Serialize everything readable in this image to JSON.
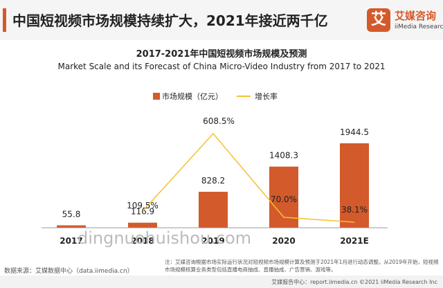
{
  "headline": "中国短视频市场规模持续扩大，2021年接近两千亿",
  "logo": {
    "mark": "艾",
    "name_cn": "艾媒咨询",
    "name_en": "iiMedia Research"
  },
  "colors": {
    "bar": "#d35a2b",
    "line": "#f3c230",
    "accent": "#d35a2b"
  },
  "chart_data": {
    "type": "bar",
    "title": "2017-2021年中国短视频市场规模及预测",
    "subtitle": "Market Scale and its Forecast of China Micro-Video Industry from 2017 to 2021",
    "categories": [
      "2017",
      "2018",
      "2019",
      "2020",
      "2021E"
    ],
    "series": [
      {
        "name": "市场规模（亿元）",
        "type": "bar",
        "values": [
          55.8,
          116.9,
          828.2,
          1408.3,
          1944.5
        ],
        "labels": [
          "55.8",
          "116.9",
          "828.2",
          "1408.3",
          "1944.5"
        ]
      },
      {
        "name": "增长率",
        "type": "line",
        "values": [
          null,
          109.5,
          608.5,
          70.0,
          38.1
        ],
        "labels": [
          "",
          "109.5%",
          "608.5%",
          "70.0%",
          "38.1%"
        ]
      }
    ],
    "legend_position": "top-center",
    "grid": false
  },
  "source": "数据来源：艾媒数据中心（data.iimedia.cn）",
  "note": "注：艾媒咨询根据市场实际运行状况对短视频市场规模计算及预测于2021年1月进行动态调整。从2019年开始，短视频市场规模核算业务类型包括直播电商抽成、直播抽成、广告营销、游戏等。",
  "footer": "艾媒报告中心：report.iimedia.cn    ©2021  iiMedia Research  Inc",
  "watermark": "dingnuohuishou.com"
}
